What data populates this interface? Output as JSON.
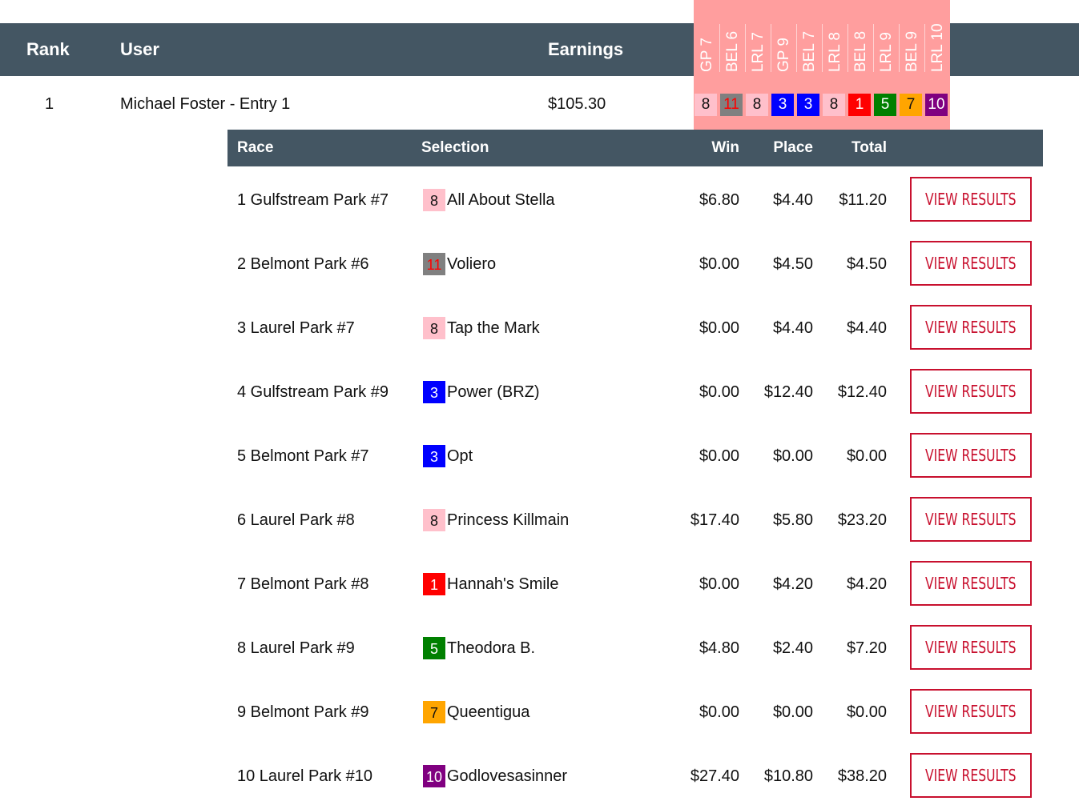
{
  "header": {
    "rank": "Rank",
    "user": "User",
    "earnings": "Earnings",
    "races": [
      "GP 7",
      "BEL 6",
      "LRL 7",
      "GP 9",
      "BEL 7",
      "LRL 8",
      "BEL 8",
      "LRL 9",
      "BEL 9",
      "LRL 10"
    ]
  },
  "entry": {
    "rank": "1",
    "user": "Michael Foster - Entry 1",
    "earnings": "$105.30",
    "picks": [
      {
        "num": "8",
        "bg": "#ffc0cb",
        "fg": "#111111"
      },
      {
        "num": "11",
        "bg": "#808080",
        "fg": "#ff0000"
      },
      {
        "num": "8",
        "bg": "#ffc0cb",
        "fg": "#111111"
      },
      {
        "num": "3",
        "bg": "#0000ff",
        "fg": "#ffffff"
      },
      {
        "num": "3",
        "bg": "#0000ff",
        "fg": "#ffffff"
      },
      {
        "num": "8",
        "bg": "#ffc0cb",
        "fg": "#111111"
      },
      {
        "num": "1",
        "bg": "#ff0000",
        "fg": "#ffffff"
      },
      {
        "num": "5",
        "bg": "#008000",
        "fg": "#ffffff"
      },
      {
        "num": "7",
        "bg": "#ffa500",
        "fg": "#111111"
      },
      {
        "num": "10",
        "bg": "#800080",
        "fg": "#ffffff"
      }
    ]
  },
  "details": {
    "headers": {
      "race": "Race",
      "selection": "Selection",
      "win": "Win",
      "place": "Place",
      "total": "Total"
    },
    "button_label": "VIEW RESULTS",
    "rows": [
      {
        "race": "1 Gulfstream Park #7",
        "num": "8",
        "bg": "#ffc0cb",
        "fg": "#111111",
        "horse": "All About Stella",
        "win": "$6.80",
        "place": "$4.40",
        "total": "$11.20"
      },
      {
        "race": "2 Belmont Park #6",
        "num": "11",
        "bg": "#808080",
        "fg": "#ff0000",
        "horse": "Voliero",
        "win": "$0.00",
        "place": "$4.50",
        "total": "$4.50"
      },
      {
        "race": "3 Laurel Park #7",
        "num": "8",
        "bg": "#ffc0cb",
        "fg": "#111111",
        "horse": "Tap the Mark",
        "win": "$0.00",
        "place": "$4.40",
        "total": "$4.40"
      },
      {
        "race": "4 Gulfstream Park #9",
        "num": "3",
        "bg": "#0000ff",
        "fg": "#ffffff",
        "horse": "Power (BRZ)",
        "win": "$0.00",
        "place": "$12.40",
        "total": "$12.40"
      },
      {
        "race": "5 Belmont Park #7",
        "num": "3",
        "bg": "#0000ff",
        "fg": "#ffffff",
        "horse": "Opt",
        "win": "$0.00",
        "place": "$0.00",
        "total": "$0.00"
      },
      {
        "race": "6 Laurel Park #8",
        "num": "8",
        "bg": "#ffc0cb",
        "fg": "#111111",
        "horse": "Princess Killmain",
        "win": "$17.40",
        "place": "$5.80",
        "total": "$23.20"
      },
      {
        "race": "7 Belmont Park #8",
        "num": "1",
        "bg": "#ff0000",
        "fg": "#ffffff",
        "horse": "Hannah's Smile",
        "win": "$0.00",
        "place": "$4.20",
        "total": "$4.20"
      },
      {
        "race": "8 Laurel Park #9",
        "num": "5",
        "bg": "#008000",
        "fg": "#ffffff",
        "horse": "Theodora B.",
        "win": "$4.80",
        "place": "$2.40",
        "total": "$7.20"
      },
      {
        "race": "9 Belmont Park #9",
        "num": "7",
        "bg": "#ffa500",
        "fg": "#111111",
        "horse": "Queentigua",
        "win": "$0.00",
        "place": "$0.00",
        "total": "$0.00"
      },
      {
        "race": "10 Laurel Park #10",
        "num": "10",
        "bg": "#800080",
        "fg": "#ffffff",
        "horse": "Godlovesasinner",
        "win": "$27.40",
        "place": "$10.80",
        "total": "$38.20"
      }
    ]
  }
}
